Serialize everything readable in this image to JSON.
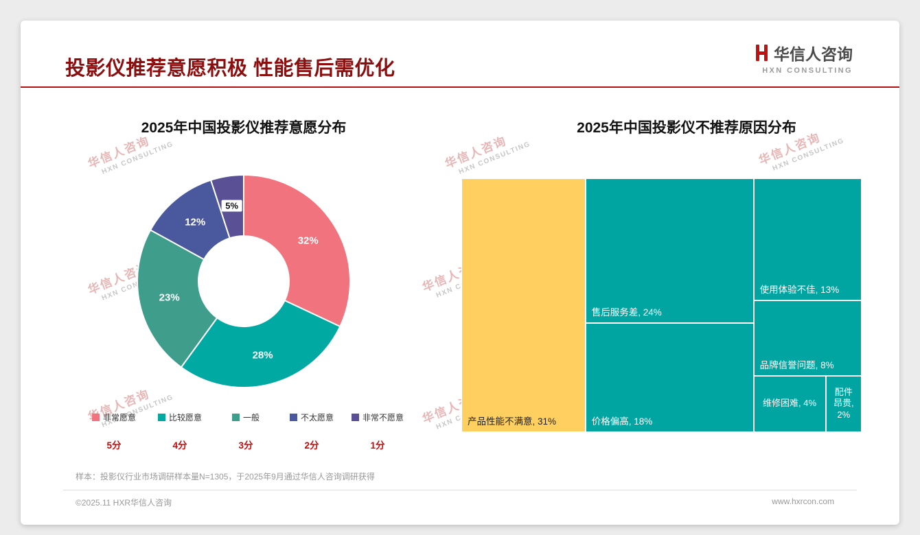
{
  "page": {
    "title": "投影仪推荐意愿积极 性能售后需优化",
    "logo": {
      "name": "华信人咨询",
      "sub": "HXN CONSULTING"
    },
    "watermark": {
      "line1": "华信人咨询",
      "line2": "HXN CONSULTING"
    },
    "note": "样本：投影仪行业市场调研样本量N=1305，于2025年9月通过华信人咨询调研获得",
    "footer_left": "©2025.11 HXR华信人咨询",
    "footer_right": "www.hxrcon.com"
  },
  "colors": {
    "title_red": "#8B0F0F",
    "accent_rule_red": "#B01212",
    "score_red": "#C40A0A",
    "treemap_teal": "#00A4A0",
    "treemap_yellow": "#FFD05F"
  },
  "chart_data": [
    {
      "type": "pie",
      "subtype": "donut",
      "title": "2025年中国投影仪推荐意愿分布",
      "categories": [
        "非常愿意",
        "比较愿意",
        "一般",
        "不太愿意",
        "非常不愿意"
      ],
      "values": [
        32,
        28,
        23,
        12,
        5
      ],
      "unit": "%",
      "scores": [
        "5分",
        "4分",
        "3分",
        "2分",
        "1分"
      ],
      "colors": [
        "#F0737D",
        "#00A9A2",
        "#3F9D8B",
        "#4A589E",
        "#5A5095"
      ],
      "start": "top",
      "direction": "clockwise",
      "inner_radius_ratio": 0.42,
      "legend_position": "bottom"
    },
    {
      "type": "treemap",
      "title": "2025年中国投影仪不推荐原因分布",
      "items": [
        {
          "label": "产品性能不满意",
          "value": 31,
          "color": "#FFD05F",
          "text_color": "#222222"
        },
        {
          "label": "售后服务差",
          "value": 24,
          "color": "#00A4A0",
          "text_color": "#ffffff"
        },
        {
          "label": "价格偏高",
          "value": 18,
          "color": "#00A4A0",
          "text_color": "#ffffff"
        },
        {
          "label": "使用体验不佳",
          "value": 13,
          "color": "#00A4A0",
          "text_color": "#ffffff"
        },
        {
          "label": "品牌信誉问题",
          "value": 8,
          "color": "#00A4A0",
          "text_color": "#ffffff"
        },
        {
          "label": "维修困难",
          "value": 4,
          "color": "#00A4A0",
          "text_color": "#ffffff"
        },
        {
          "label": "配件昂贵",
          "value": 2,
          "color": "#00A4A0",
          "text_color": "#ffffff"
        }
      ],
      "unit": "%",
      "layout_columns": [
        [
          0
        ],
        [
          1,
          2
        ],
        [
          3,
          4,
          [
            5,
            6
          ]
        ]
      ]
    }
  ]
}
